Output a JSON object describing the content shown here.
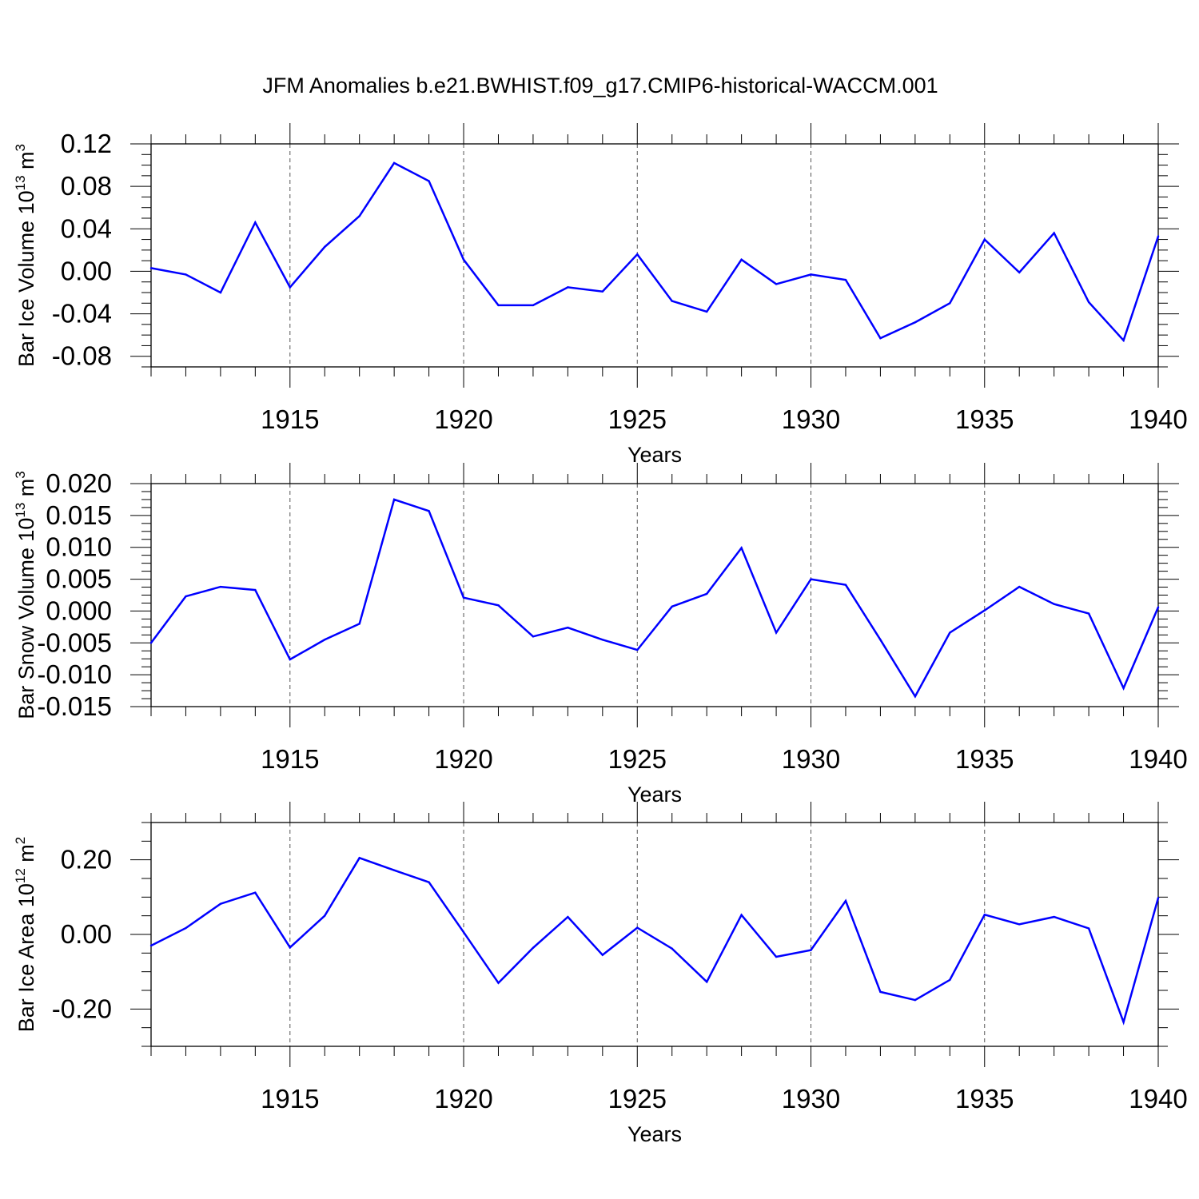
{
  "figure": {
    "title": "JFM Anomalies b.e21.BWHIST.f09_g17.CMIP6-historical-WACCM.001"
  },
  "colors": {
    "line": "#0000ff",
    "axis": "#000000",
    "grid": "#555555"
  },
  "chart_data": [
    {
      "type": "line",
      "ylabel_main": "Bar Ice Volume 10",
      "ylabel_exp": "13",
      "ylabel_unit": " m",
      "ylabel_unit_exp": "3",
      "xlabel": "Years",
      "xlim": [
        1911,
        1940
      ],
      "ylim": [
        -0.09,
        0.12
      ],
      "yticks": [
        0.12,
        0.08,
        0.04,
        0.0,
        -0.04,
        -0.08
      ],
      "ytick_labels": [
        "0.12",
        "0.08",
        "0.04",
        "0.00",
        "-0.04",
        "-0.08"
      ],
      "xticks": [
        1915,
        1920,
        1925,
        1930,
        1935,
        1940
      ],
      "xtick_labels": [
        "1915",
        "1920",
        "1925",
        "1930",
        "1935",
        "1940"
      ],
      "x": [
        1911,
        1912,
        1913,
        1914,
        1915,
        1916,
        1917,
        1918,
        1919,
        1920,
        1921,
        1922,
        1923,
        1924,
        1925,
        1926,
        1927,
        1928,
        1929,
        1930,
        1931,
        1932,
        1933,
        1934,
        1935,
        1936,
        1937,
        1938,
        1939,
        1940
      ],
      "values": [
        0.003,
        -0.003,
        -0.02,
        0.046,
        -0.015,
        0.023,
        0.052,
        0.102,
        0.085,
        0.011,
        -0.032,
        -0.032,
        -0.015,
        -0.019,
        0.016,
        -0.028,
        -0.038,
        0.011,
        -0.012,
        -0.003,
        -0.008,
        -0.063,
        -0.048,
        -0.03,
        0.03,
        -0.001,
        0.036,
        -0.029,
        -0.065,
        0.033
      ]
    },
    {
      "type": "line",
      "ylabel_main": "Bar Snow Volume 10",
      "ylabel_exp": "13",
      "ylabel_unit": " m",
      "ylabel_unit_exp": "3",
      "xlabel": "Years",
      "xlim": [
        1911,
        1940
      ],
      "ylim": [
        -0.015,
        0.02
      ],
      "yticks": [
        0.02,
        0.015,
        0.01,
        0.005,
        0.0,
        -0.005,
        -0.01,
        -0.015
      ],
      "ytick_labels": [
        "0.020",
        "0.015",
        "0.010",
        "0.005",
        "0.000",
        "-0.005",
        "-0.010",
        "-0.015"
      ],
      "xticks": [
        1915,
        1920,
        1925,
        1930,
        1935,
        1940
      ],
      "xtick_labels": [
        "1915",
        "1920",
        "1925",
        "1930",
        "1935",
        "1940"
      ],
      "x": [
        1911,
        1912,
        1913,
        1914,
        1915,
        1916,
        1917,
        1918,
        1919,
        1920,
        1921,
        1922,
        1923,
        1924,
        1925,
        1926,
        1927,
        1928,
        1929,
        1930,
        1931,
        1932,
        1933,
        1934,
        1935,
        1936,
        1937,
        1938,
        1939,
        1940
      ],
      "values": [
        -0.005,
        0.0023,
        0.0038,
        0.0033,
        -0.0076,
        -0.0045,
        -0.002,
        0.0175,
        0.0157,
        0.0021,
        0.0009,
        -0.004,
        -0.0026,
        -0.0045,
        -0.0061,
        0.0007,
        0.0027,
        0.0099,
        -0.0034,
        0.005,
        0.0041,
        -0.0045,
        -0.0134,
        -0.0034,
        0.0001,
        0.0038,
        0.0011,
        -0.0004,
        -0.0121,
        0.0006
      ]
    },
    {
      "type": "line",
      "ylabel_main": "Bar Ice Area 10",
      "ylabel_exp": "12",
      "ylabel_unit": " m",
      "ylabel_unit_exp": "2",
      "xlabel": "Years",
      "xlim": [
        1911,
        1940
      ],
      "ylim": [
        -0.3,
        0.3
      ],
      "yticks": [
        0.2,
        0.0,
        -0.2
      ],
      "ytick_labels": [
        "0.20",
        "0.00",
        "-0.20"
      ],
      "xticks": [
        1915,
        1920,
        1925,
        1930,
        1935,
        1940
      ],
      "xtick_labels": [
        "1915",
        "1920",
        "1925",
        "1930",
        "1935",
        "1940"
      ],
      "x": [
        1911,
        1912,
        1913,
        1914,
        1915,
        1916,
        1917,
        1918,
        1919,
        1920,
        1921,
        1922,
        1923,
        1924,
        1925,
        1926,
        1927,
        1928,
        1929,
        1930,
        1931,
        1932,
        1933,
        1934,
        1935,
        1936,
        1937,
        1938,
        1939,
        1940
      ],
      "values": [
        -0.03,
        0.017,
        0.082,
        0.112,
        -0.035,
        0.05,
        0.205,
        0.172,
        0.14,
        0.006,
        -0.13,
        -0.036,
        0.047,
        -0.055,
        0.018,
        -0.038,
        -0.127,
        0.052,
        -0.06,
        -0.042,
        0.09,
        -0.154,
        -0.176,
        -0.122,
        0.053,
        0.027,
        0.047,
        0.016,
        -0.235,
        0.098
      ]
    }
  ]
}
